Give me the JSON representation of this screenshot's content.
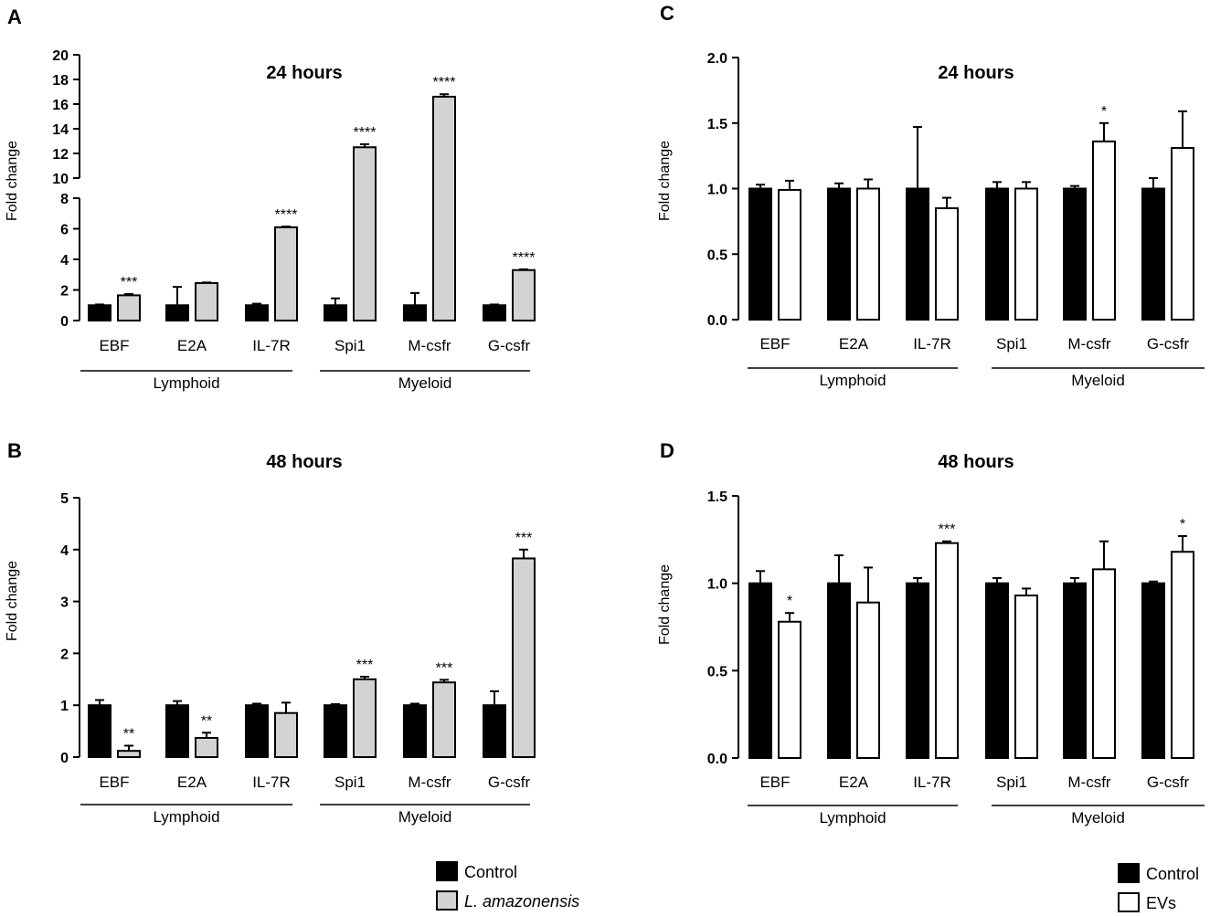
{
  "figure": {
    "legend_left": [
      {
        "label": "Control",
        "color": "#000000"
      },
      {
        "label": "L. amazonensis",
        "color": "#d3d3d3",
        "italic": true
      }
    ],
    "legend_right": [
      {
        "label": "Control",
        "color": "#000000"
      },
      {
        "label": "EVs",
        "color": "#ffffff"
      }
    ]
  },
  "chart_data": [
    {
      "panel": "A",
      "type": "bar",
      "title": "24 hours",
      "ylabel": "Fold change",
      "categories": [
        "EBF",
        "E2A",
        "IL-7R",
        "Spi1",
        "M-csfr",
        "G-csfr"
      ],
      "groups": [
        {
          "label": "Lymphoid",
          "span": [
            0,
            2
          ]
        },
        {
          "label": "Myeloid",
          "span": [
            3,
            5
          ]
        }
      ],
      "ylim": [
        0,
        20
      ],
      "axis_break": [
        8,
        10
      ],
      "yticks_lower": [
        "0",
        "2",
        "4",
        "6",
        "8"
      ],
      "yticks_upper": [
        "10",
        "12",
        "14",
        "16",
        "18",
        "20"
      ],
      "series": [
        {
          "name": "Control",
          "color": "#000000",
          "values": [
            1.0,
            1.0,
            1.0,
            1.0,
            1.0,
            1.0
          ],
          "errors": [
            0.05,
            1.2,
            0.1,
            0.45,
            0.8,
            0.05
          ]
        },
        {
          "name": "L. amazonensis",
          "color": "#d3d3d3",
          "values": [
            1.65,
            2.45,
            6.1,
            12.5,
            16.6,
            3.3
          ],
          "errors": [
            0.08,
            0.04,
            0.05,
            0.25,
            0.2,
            0.05
          ]
        }
      ],
      "significance": [
        "***",
        "",
        "****",
        "****",
        "****",
        "****"
      ]
    },
    {
      "panel": "B",
      "type": "bar",
      "title": "48 hours",
      "ylabel": "Fold change",
      "categories": [
        "EBF",
        "E2A",
        "IL-7R",
        "Spi1",
        "M-csfr",
        "G-csfr"
      ],
      "groups": [
        {
          "label": "Lymphoid",
          "span": [
            0,
            2
          ]
        },
        {
          "label": "Myeloid",
          "span": [
            3,
            5
          ]
        }
      ],
      "ylim": [
        0,
        5
      ],
      "yticks": [
        "0",
        "1",
        "2",
        "3",
        "4",
        "5"
      ],
      "series": [
        {
          "name": "Control",
          "color": "#000000",
          "values": [
            1.0,
            1.0,
            1.0,
            1.0,
            1.0,
            1.0
          ],
          "errors": [
            0.1,
            0.08,
            0.03,
            0.02,
            0.03,
            0.27
          ]
        },
        {
          "name": "L. amazonensis",
          "color": "#d3d3d3",
          "values": [
            0.12,
            0.37,
            0.85,
            1.5,
            1.44,
            3.83
          ],
          "errors": [
            0.1,
            0.1,
            0.2,
            0.05,
            0.05,
            0.17
          ]
        }
      ],
      "significance": [
        "**",
        "**",
        "",
        "***",
        "***",
        "***"
      ]
    },
    {
      "panel": "C",
      "type": "bar",
      "title": "24 hours",
      "ylabel": "Fold change",
      "categories": [
        "EBF",
        "E2A",
        "IL-7R",
        "Spi1",
        "M-csfr",
        "G-csfr"
      ],
      "groups": [
        {
          "label": "Lymphoid",
          "span": [
            0,
            2
          ]
        },
        {
          "label": "Myeloid",
          "span": [
            3,
            5
          ]
        }
      ],
      "ylim": [
        0,
        2.0
      ],
      "yticks": [
        "0.0",
        "0.5",
        "1.0",
        "1.5",
        "2.0"
      ],
      "series": [
        {
          "name": "Control",
          "color": "#000000",
          "values": [
            1.0,
            1.0,
            1.0,
            1.0,
            1.0,
            1.0
          ],
          "errors": [
            0.03,
            0.04,
            0.47,
            0.05,
            0.02,
            0.08
          ]
        },
        {
          "name": "EVs",
          "color": "#ffffff",
          "values": [
            0.99,
            1.0,
            0.85,
            1.0,
            1.36,
            1.31
          ],
          "errors": [
            0.07,
            0.07,
            0.08,
            0.05,
            0.14,
            0.28
          ]
        }
      ],
      "significance": [
        "",
        "",
        "",
        "",
        "*",
        ""
      ]
    },
    {
      "panel": "D",
      "type": "bar",
      "title": "48 hours",
      "ylabel": "Fold change",
      "categories": [
        "EBF",
        "E2A",
        "IL-7R",
        "Spi1",
        "M-csfr",
        "G-csfr"
      ],
      "groups": [
        {
          "label": "Lymphoid",
          "span": [
            0,
            2
          ]
        },
        {
          "label": "Myeloid",
          "span": [
            3,
            5
          ]
        }
      ],
      "ylim": [
        0,
        1.5
      ],
      "yticks": [
        "0.0",
        "0.5",
        "1.0",
        "1.5"
      ],
      "series": [
        {
          "name": "Control",
          "color": "#000000",
          "values": [
            1.0,
            1.0,
            1.0,
            1.0,
            1.0,
            1.0
          ],
          "errors": [
            0.07,
            0.16,
            0.03,
            0.03,
            0.03,
            0.01
          ]
        },
        {
          "name": "EVs",
          "color": "#ffffff",
          "values": [
            0.78,
            0.89,
            1.23,
            0.93,
            1.08,
            1.18
          ],
          "errors": [
            0.05,
            0.2,
            0.01,
            0.04,
            0.16,
            0.09
          ]
        }
      ],
      "significance": [
        "*",
        "",
        "***",
        "",
        "",
        "*"
      ]
    }
  ]
}
